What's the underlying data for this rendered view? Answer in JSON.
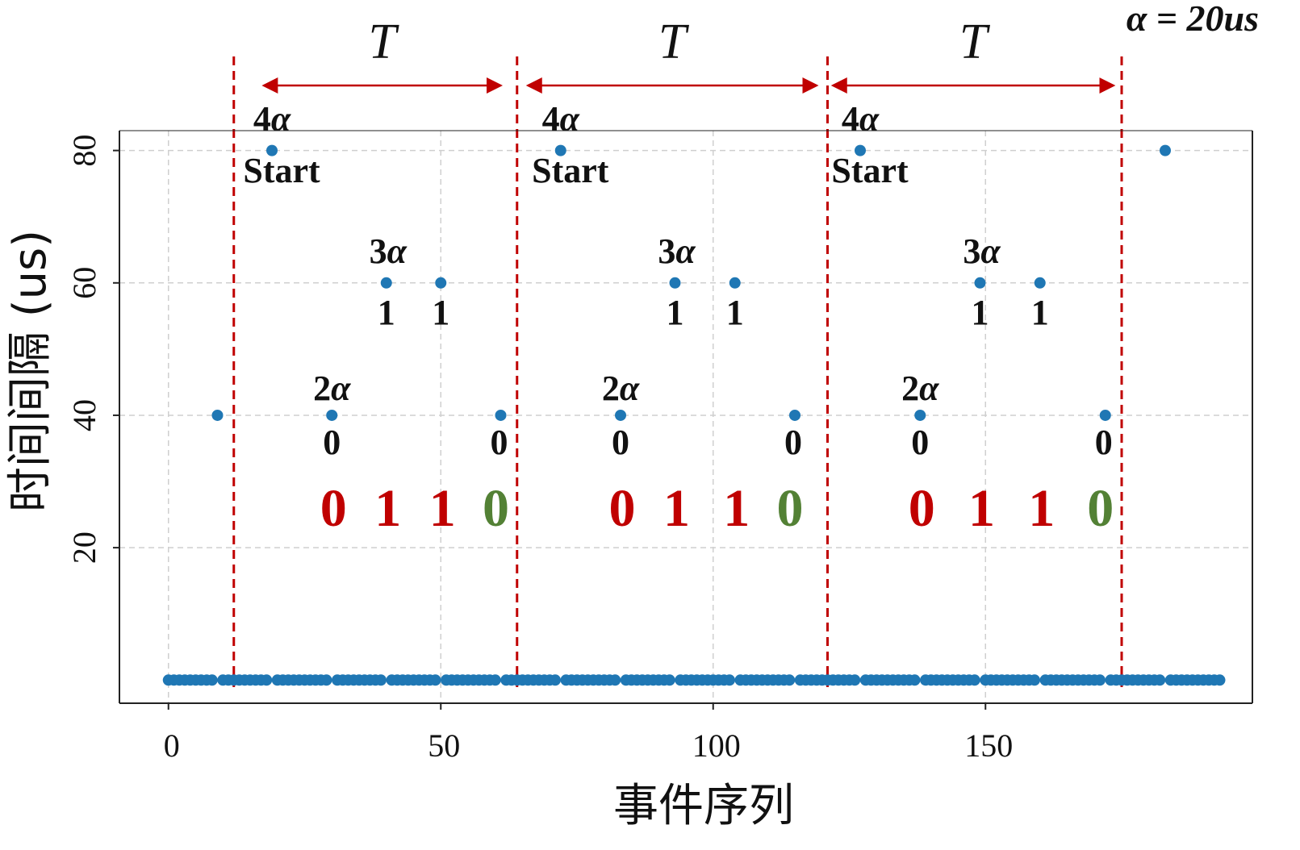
{
  "chart_data": {
    "type": "scatter",
    "xlabel": "事件序列",
    "ylabel": "时间间隔 (us)",
    "xlim": [
      -9,
      199
    ],
    "ylim": [
      -3.5,
      83
    ],
    "xticks": [
      0,
      50,
      100,
      150
    ],
    "yticks": [
      20,
      40,
      60,
      80
    ],
    "grid": true,
    "marker_color": "#1f77b4",
    "baseline_y": 0,
    "baseline_x_range": [
      0,
      193
    ],
    "points": [
      {
        "x": 9,
        "y": 40
      },
      {
        "x": 19,
        "y": 80
      },
      {
        "x": 30,
        "y": 40
      },
      {
        "x": 40,
        "y": 60
      },
      {
        "x": 50,
        "y": 60
      },
      {
        "x": 61,
        "y": 40
      },
      {
        "x": 72,
        "y": 80
      },
      {
        "x": 83,
        "y": 40
      },
      {
        "x": 93,
        "y": 60
      },
      {
        "x": 104,
        "y": 60
      },
      {
        "x": 115,
        "y": 40
      },
      {
        "x": 127,
        "y": 80
      },
      {
        "x": 138,
        "y": 40
      },
      {
        "x": 149,
        "y": 60
      },
      {
        "x": 160,
        "y": 60
      },
      {
        "x": 172,
        "y": 40
      },
      {
        "x": 183,
        "y": 80
      }
    ],
    "divider_color": "#c00000",
    "dividers_x": [
      12,
      64,
      121,
      175
    ],
    "periods": [
      {
        "label": "T",
        "x_from": 17.5,
        "x_to": 61
      },
      {
        "label": "T",
        "x_from": 66,
        "x_to": 119
      },
      {
        "label": "T",
        "x_from": 122,
        "x_to": 173.5
      }
    ],
    "groups": [
      {
        "start_x": 19,
        "start_mult": "4α",
        "start_label": "Start",
        "x2": 30,
        "x3": 40,
        "x3b": 50,
        "x0": 61,
        "mult2": "2α",
        "mult3": "3α",
        "val2": "0",
        "val3a": "1",
        "val3b": "1",
        "val0": "0",
        "bits": [
          {
            "text": "0",
            "color": "#c00000"
          },
          {
            "text": "1",
            "color": "#c00000"
          },
          {
            "text": "1",
            "color": "#c00000"
          },
          {
            "text": "0",
            "color": "#538135"
          }
        ]
      },
      {
        "start_x": 72,
        "start_mult": "4α",
        "start_label": "Start",
        "x2": 83,
        "x3": 93,
        "x3b": 104,
        "x0": 115,
        "mult2": "2α",
        "mult3": "3α",
        "val2": "0",
        "val3a": "1",
        "val3b": "1",
        "val0": "0",
        "bits": [
          {
            "text": "0",
            "color": "#c00000"
          },
          {
            "text": "1",
            "color": "#c00000"
          },
          {
            "text": "1",
            "color": "#c00000"
          },
          {
            "text": "0",
            "color": "#538135"
          }
        ]
      },
      {
        "start_x": 127,
        "start_mult": "4α",
        "start_label": "Start",
        "x2": 138,
        "x3": 149,
        "x3b": 160,
        "x0": 172,
        "mult2": "2α",
        "mult3": "3α",
        "val2": "0",
        "val3a": "1",
        "val3b": "1",
        "val0": "0",
        "bits": [
          {
            "text": "0",
            "color": "#c00000"
          },
          {
            "text": "1",
            "color": "#c00000"
          },
          {
            "text": "1",
            "color": "#c00000"
          },
          {
            "text": "0",
            "color": "#538135"
          }
        ]
      }
    ],
    "corner_note": "α = 20us"
  }
}
